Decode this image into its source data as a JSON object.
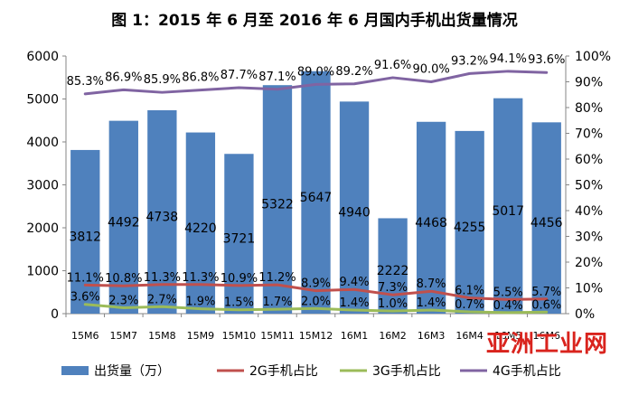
{
  "chart_data": {
    "type": "bar+line",
    "title": "图 1：2015 年 6 月至 2016 年 6 月国内手机出货量情况",
    "categories": [
      "15M6",
      "15M7",
      "15M8",
      "15M9",
      "15M10",
      "15M11",
      "15M12",
      "16M1",
      "16M2",
      "16M3",
      "16M4",
      "16M5",
      "16M6"
    ],
    "bar_series": {
      "name": "出货量（万）",
      "values": [
        3812,
        4492,
        4738,
        4220,
        3721,
        5322,
        5647,
        4940,
        2222,
        4468,
        4255,
        5017,
        4456
      ],
      "axis": "left"
    },
    "line_series": [
      {
        "name": "2G手机占比",
        "values": [
          11.1,
          10.8,
          11.3,
          11.3,
          10.9,
          11.2,
          8.9,
          9.4,
          7.3,
          8.7,
          6.1,
          5.5,
          5.7
        ],
        "axis": "right"
      },
      {
        "name": "3G手机占比",
        "values": [
          3.6,
          2.3,
          2.7,
          1.9,
          1.5,
          1.7,
          2.0,
          1.4,
          1.0,
          1.4,
          0.7,
          0.4,
          0.6
        ],
        "axis": "right"
      },
      {
        "name": "4G手机占比",
        "values": [
          85.3,
          86.9,
          85.9,
          86.8,
          87.7,
          87.1,
          89.0,
          89.2,
          91.6,
          90.0,
          93.2,
          94.1,
          93.6
        ],
        "axis": "right"
      }
    ],
    "left_axis": {
      "ticks": [
        "0",
        "1000",
        "2000",
        "3000",
        "4000",
        "5000",
        "6000"
      ],
      "ylim": [
        0,
        6000
      ]
    },
    "right_axis": {
      "ticks": [
        "0%",
        "10%",
        "20%",
        "30%",
        "40%",
        "50%",
        "60%",
        "70%",
        "80%",
        "90%",
        "100%"
      ],
      "ylim": [
        0,
        100
      ]
    },
    "grid": false,
    "legend_position": "bottom",
    "colors": {
      "bar": "#4f81bd",
      "line_2g": "#c0504d",
      "line_3g": "#9bbb59",
      "line_4g": "#8064a2"
    }
  },
  "watermark": "亚洲工业网"
}
